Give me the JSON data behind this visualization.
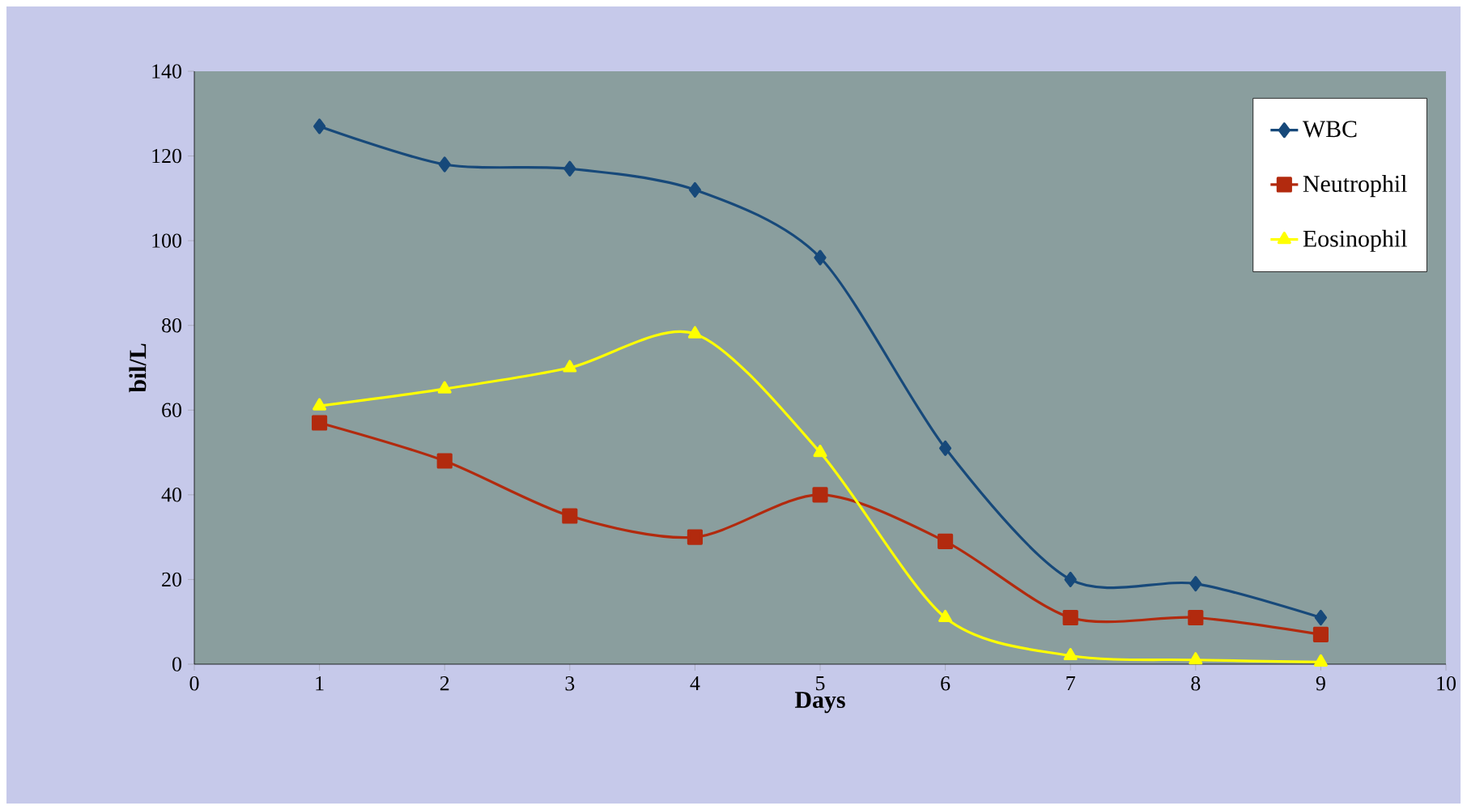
{
  "chart_data": {
    "type": "line",
    "xlabel": "Days",
    "ylabel": "bil/L",
    "x": [
      1,
      2,
      3,
      4,
      5,
      6,
      7,
      8,
      9
    ],
    "series": [
      {
        "name": "WBC",
        "color": "#17497a",
        "marker": "diamond",
        "values": [
          127,
          118,
          117,
          112,
          96,
          51,
          20,
          19,
          11
        ]
      },
      {
        "name": "Neutrophil",
        "color": "#b22a0e",
        "marker": "square",
        "values": [
          57,
          48,
          35,
          30,
          40,
          29,
          11,
          11,
          7
        ]
      },
      {
        "name": "Eosinophil",
        "color": "#ffff00",
        "marker": "triangle",
        "values": [
          61,
          65,
          70,
          78,
          50,
          11,
          2,
          1,
          0.5
        ]
      }
    ],
    "xlim": [
      0,
      10
    ],
    "xticks": [
      0,
      1,
      2,
      3,
      4,
      5,
      6,
      7,
      8,
      9,
      10
    ],
    "ylim": [
      0,
      140
    ],
    "yticks": [
      0,
      20,
      40,
      60,
      80,
      100,
      120,
      140
    ],
    "legend": "top right"
  }
}
